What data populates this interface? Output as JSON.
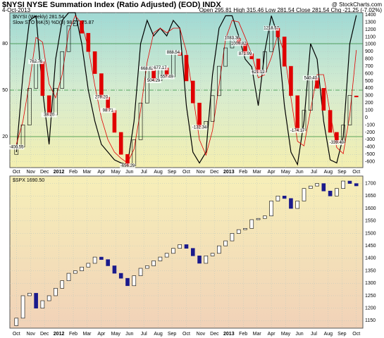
{
  "chart_data": [
    {
      "type": "candlestick",
      "title": "$NYSI NYSE Summation Index (Ratio Adjusted) (EOD) INDX",
      "date": "4-Oct-2013",
      "source": "@ StockCharts.com",
      "quote": "Open 295.81 High 315.46 Low 281.54 Close 281.54 Chg -21.25 (-7.02%)",
      "legend": "$NYSI (Weekly) 281.54",
      "up_color": "#000000",
      "down_color": "#e00000",
      "open": [
        -500,
        -400,
        -100,
        400,
        762,
        300,
        38,
        400,
        900,
        1250,
        1320,
        1150,
        900,
        600,
        278,
        98,
        -200,
        -500,
        -656,
        -300,
        200,
        668,
        504,
        677,
        557,
        888,
        850,
        500,
        200,
        -132,
        -50,
        300,
        700,
        950,
        1083,
        1009,
        871,
        800,
        621,
        900,
        1218,
        1100,
        700,
        300,
        -174,
        100,
        540,
        400,
        100,
        -200,
        -339,
        -100,
        295.81
      ],
      "close": [
        -400,
        -100,
        400,
        762,
        300,
        38,
        400,
        900,
        1250,
        1320,
        1150,
        900,
        600,
        278,
        98,
        -200,
        -500,
        -656,
        -300,
        200,
        668,
        504,
        677,
        557,
        888,
        850,
        500,
        200,
        -132,
        -50,
        300,
        700,
        950,
        1083,
        1009,
        871,
        800,
        621,
        900,
        1218,
        1100,
        700,
        300,
        -174,
        100,
        540,
        400,
        100,
        -200,
        -339,
        -100,
        303,
        281.54
      ],
      "ylim": [
        -680,
        1430
      ],
      "yticks": [
        -600,
        -500,
        -400,
        -300,
        -200,
        -100,
        0,
        100,
        200,
        300,
        400,
        500,
        600,
        700,
        800,
        900,
        1000,
        1100,
        1200,
        1300,
        1400
      ],
      "xlim": [
        -1,
        53
      ],
      "xticks": [
        {
          "value": 0,
          "label": "Oct"
        },
        {
          "value": 2.2,
          "label": "Nov"
        },
        {
          "value": 4.3,
          "label": "Dec"
        },
        {
          "value": 6.5,
          "label": "2012"
        },
        {
          "value": 8.7,
          "label": "Feb"
        },
        {
          "value": 10.8,
          "label": "Mar"
        },
        {
          "value": 13,
          "label": "Apr"
        },
        {
          "value": 15.2,
          "label": "May"
        },
        {
          "value": 17.3,
          "label": "Jun"
        },
        {
          "value": 19.5,
          "label": "Jul"
        },
        {
          "value": 21.7,
          "label": "Aug"
        },
        {
          "value": 23.8,
          "label": "Sep"
        },
        {
          "value": 26,
          "label": "Oct"
        },
        {
          "value": 28.2,
          "label": "Nov"
        },
        {
          "value": 30.3,
          "label": "Dec"
        },
        {
          "value": 32.5,
          "label": "2013"
        },
        {
          "value": 34.7,
          "label": "Feb"
        },
        {
          "value": 36.8,
          "label": "Mar"
        },
        {
          "value": 39,
          "label": "Apr"
        },
        {
          "value": 41.2,
          "label": "May"
        },
        {
          "value": 43.3,
          "label": "Jun"
        },
        {
          "value": 45.5,
          "label": "Jul"
        },
        {
          "value": 47.7,
          "label": "Aug"
        },
        {
          "value": 49.8,
          "label": "Sep"
        },
        {
          "value": 52,
          "label": "Oct"
        }
      ],
      "annotations": [
        {
          "x": 0,
          "value": -400.55,
          "label": "-400.55"
        },
        {
          "x": 3,
          "value": 762.76,
          "label": "762.76"
        },
        {
          "x": 5,
          "value": 38.2,
          "label": "38.20"
        },
        {
          "x": 13,
          "value": 278.2,
          "label": "278.20"
        },
        {
          "x": 14,
          "value": 98.71,
          "label": "98.71"
        },
        {
          "x": 17,
          "value": -656.29,
          "label": "-656.29"
        },
        {
          "x": 20,
          "value": 668.62,
          "label": "668.62"
        },
        {
          "x": 21,
          "value": 504.29,
          "label": "504.29"
        },
        {
          "x": 22,
          "value": 677.17,
          "label": "677.17"
        },
        {
          "x": 23,
          "value": 557.49,
          "label": "557.49"
        },
        {
          "x": 24,
          "value": 888.54,
          "label": "888.54"
        },
        {
          "x": 28,
          "value": -132.34,
          "label": "-132.34"
        },
        {
          "x": 33,
          "value": 1083.36,
          "label": "1083.36"
        },
        {
          "x": 34,
          "value": 1009.82,
          "label": "1009.82"
        },
        {
          "x": 35,
          "value": 871.99,
          "label": "871.99"
        },
        {
          "x": 37,
          "value": 621.12,
          "label": "621.12"
        },
        {
          "x": 39,
          "value": 1218.57,
          "label": "1218.57"
        },
        {
          "x": 45,
          "value": 540.4,
          "label": "540.40"
        },
        {
          "x": 43,
          "value": -174.17,
          "label": "-174.17"
        },
        {
          "x": 49,
          "value": -339.4,
          "label": "-339.40"
        }
      ],
      "stochastic": {
        "label": "Slow STO %K(5) %D(3) 98.27, 75.87",
        "ylim": [
          0,
          100
        ],
        "yticks": [
          20,
          50,
          80
        ],
        "series": [
          {
            "color": "#000000",
            "values": [
              10,
              60,
              95,
              98,
              50,
              15,
              70,
              95,
              100,
              100,
              80,
              50,
              30,
              15,
              10,
              5,
              3,
              2,
              30,
              80,
              95,
              85,
              90,
              85,
              95,
              90,
              40,
              10,
              3,
              10,
              60,
              90,
              98,
              98,
              85,
              70,
              65,
              40,
              75,
              98,
              85,
              40,
              10,
              2,
              30,
              80,
              70,
              30,
              5,
              3,
              20,
              80,
              98.27
            ]
          },
          {
            "color": "#e00000",
            "values": [
              15,
              30,
              55,
              84,
              81,
              54,
              45,
              60,
              88,
              98,
              93,
              77,
              53,
              32,
              18,
              10,
              6,
              3,
              12,
              37,
              68,
              87,
              90,
              87,
              90,
              90,
              75,
              47,
              18,
              8,
              24,
              53,
              83,
              95,
              94,
              84,
              73,
              58,
              60,
              71,
              86,
              74,
              45,
              17,
              14,
              37,
              60,
              60,
              35,
              13,
              9,
              34,
              75.87
            ]
          }
        ]
      }
    },
    {
      "type": "candlestick",
      "legend": "$SPX 1690.50",
      "up_color": "#ffffff",
      "down_color": "#1a1a8c",
      "open": [
        1130,
        1160,
        1250,
        1260,
        1200,
        1230,
        1250,
        1280,
        1310,
        1340,
        1350,
        1365,
        1380,
        1405,
        1395,
        1370,
        1340,
        1320,
        1290,
        1330,
        1360,
        1370,
        1390,
        1405,
        1420,
        1440,
        1455,
        1440,
        1410,
        1380,
        1410,
        1420,
        1450,
        1470,
        1500,
        1515,
        1520,
        1555,
        1560,
        1570,
        1630,
        1650,
        1640,
        1600,
        1630,
        1680,
        1690,
        1700,
        1670,
        1650,
        1680,
        1710,
        1700
      ],
      "close": [
        1160,
        1250,
        1260,
        1200,
        1230,
        1250,
        1280,
        1310,
        1340,
        1350,
        1365,
        1380,
        1405,
        1395,
        1370,
        1340,
        1320,
        1290,
        1330,
        1360,
        1370,
        1390,
        1405,
        1420,
        1440,
        1455,
        1440,
        1410,
        1380,
        1410,
        1420,
        1450,
        1470,
        1500,
        1515,
        1520,
        1555,
        1560,
        1570,
        1630,
        1650,
        1640,
        1600,
        1630,
        1680,
        1690,
        1700,
        1670,
        1650,
        1680,
        1710,
        1700,
        1690.5
      ],
      "ylim": [
        1120,
        1730
      ],
      "yticks": [
        1150,
        1200,
        1250,
        1300,
        1350,
        1400,
        1450,
        1500,
        1550,
        1600,
        1650,
        1700
      ],
      "xlim": [
        -1,
        53
      ],
      "xticks": [
        {
          "value": 0,
          "label": "Oct"
        },
        {
          "value": 2.2,
          "label": "Nov"
        },
        {
          "value": 4.3,
          "label": "Dec"
        },
        {
          "value": 6.5,
          "label": "2012"
        },
        {
          "value": 8.7,
          "label": "Feb"
        },
        {
          "value": 10.8,
          "label": "Mar"
        },
        {
          "value": 13,
          "label": "Apr"
        },
        {
          "value": 15.2,
          "label": "May"
        },
        {
          "value": 17.3,
          "label": "Jun"
        },
        {
          "value": 19.5,
          "label": "Jul"
        },
        {
          "value": 21.7,
          "label": "Aug"
        },
        {
          "value": 23.8,
          "label": "Sep"
        },
        {
          "value": 26,
          "label": "Oct"
        },
        {
          "value": 28.2,
          "label": "Nov"
        },
        {
          "value": 30.3,
          "label": "Dec"
        },
        {
          "value": 32.5,
          "label": "2013"
        },
        {
          "value": 34.7,
          "label": "Feb"
        },
        {
          "value": 36.8,
          "label": "Mar"
        },
        {
          "value": 39,
          "label": "Apr"
        },
        {
          "value": 41.2,
          "label": "May"
        },
        {
          "value": 43.3,
          "label": "Jun"
        },
        {
          "value": 45.5,
          "label": "Jul"
        },
        {
          "value": 47.7,
          "label": "Aug"
        },
        {
          "value": 49.8,
          "label": "Sep"
        },
        {
          "value": 52,
          "label": "Oct"
        }
      ]
    }
  ]
}
